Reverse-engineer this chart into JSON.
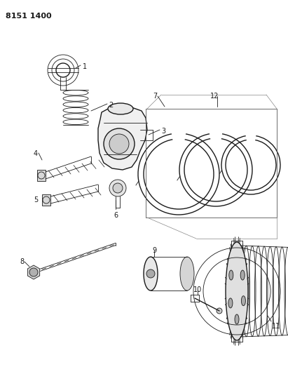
{
  "title_code": "8151 1400",
  "bg_color": "#ffffff",
  "line_color": "#1a1a1a",
  "fig_width": 4.11,
  "fig_height": 5.33,
  "dpi": 100
}
